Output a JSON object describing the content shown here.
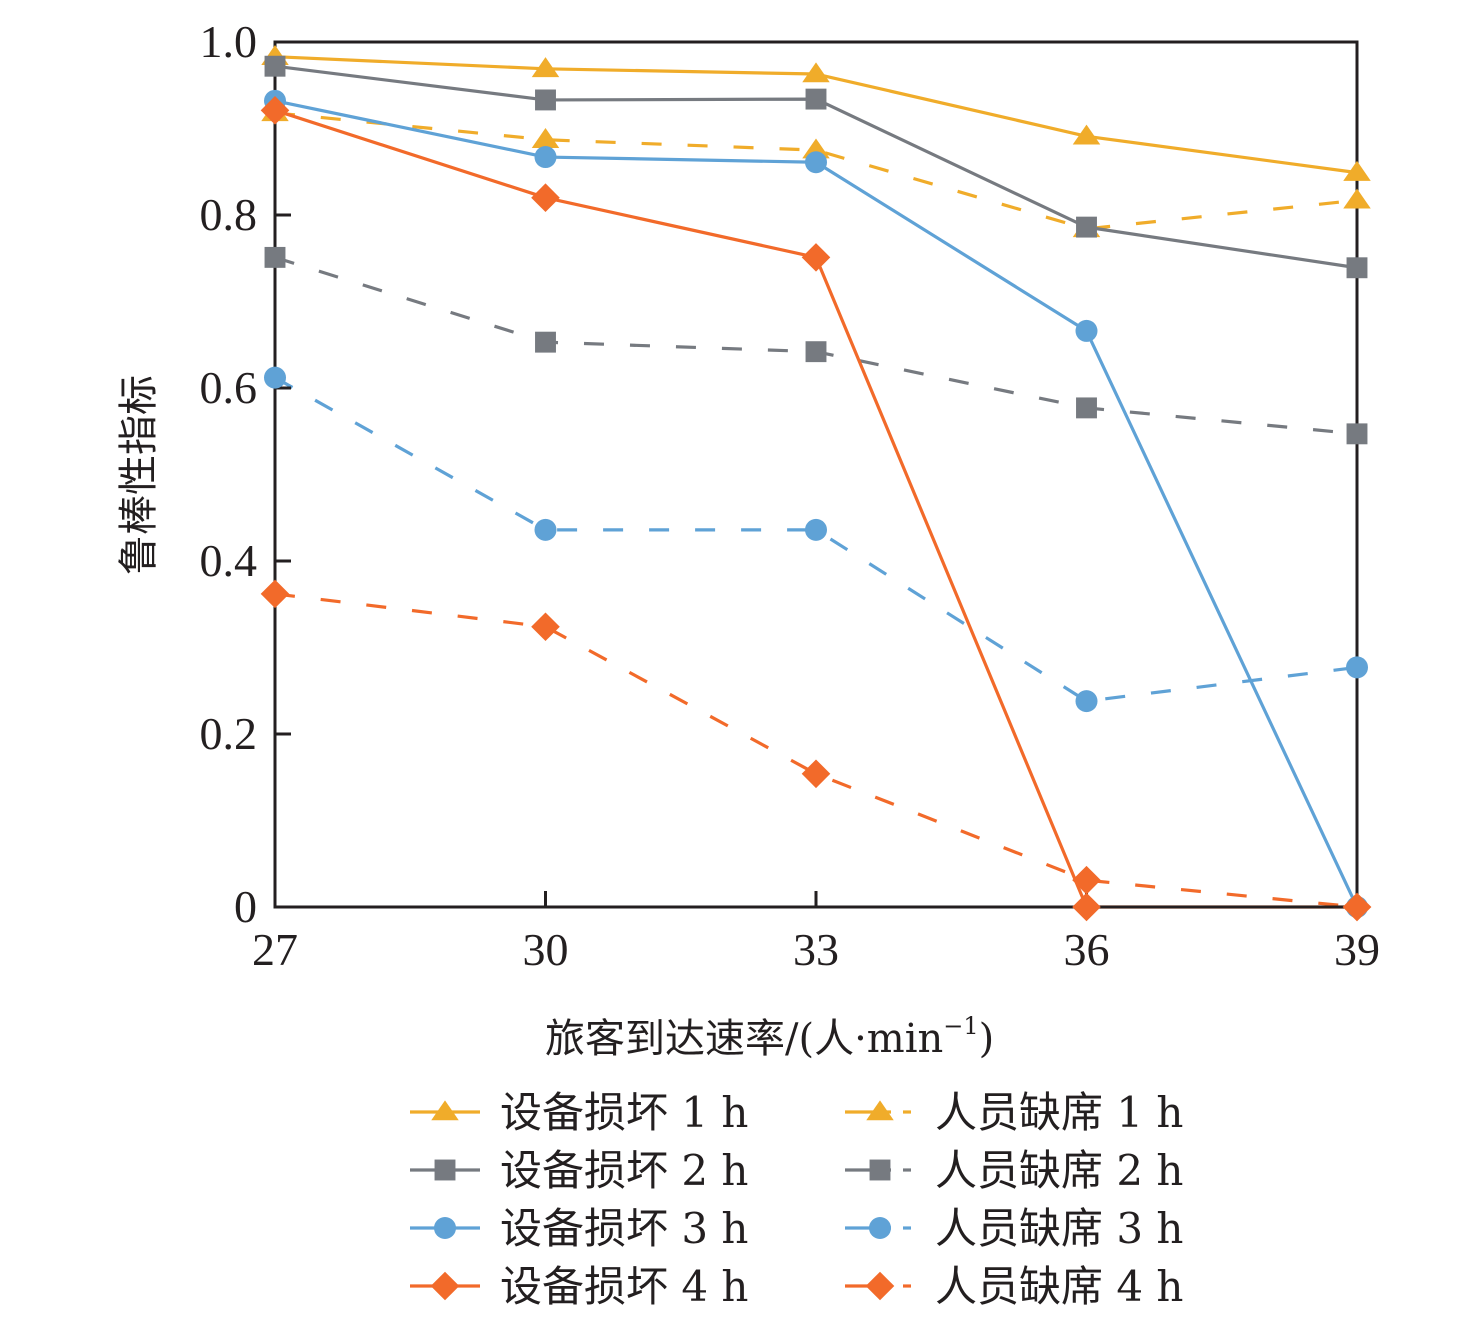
{
  "chart_data": {
    "type": "line",
    "title": "",
    "xlabel": "旅客到达速率/(人·min",
    "xlabel_sup": "−1",
    "xlabel_close": ")",
    "ylabel": "鲁棒性指标",
    "x": [
      27,
      30,
      33,
      36,
      39
    ],
    "xlim": [
      27,
      39
    ],
    "ylim": [
      0,
      1.0
    ],
    "x_ticks": [
      "27",
      "30",
      "33",
      "36",
      "39"
    ],
    "y_ticks": [
      {
        "value": 0,
        "label": "0"
      },
      {
        "value": 0.2,
        "label": "0.2"
      },
      {
        "value": 0.4,
        "label": "0.4"
      },
      {
        "value": 0.6,
        "label": "0.6"
      },
      {
        "value": 0.8,
        "label": "0.8"
      },
      {
        "value": 1.0,
        "label": "1.0"
      }
    ],
    "grid": false,
    "legend_position": "bottom",
    "series": [
      {
        "name": "设备损坏 1 h",
        "color": "#f0ac2a",
        "marker": "triangle",
        "dash": false,
        "values": [
          0.983,
          0.969,
          0.963,
          0.891,
          0.849
        ]
      },
      {
        "name": "设备损坏 2 h",
        "color": "#767a80",
        "marker": "square",
        "dash": false,
        "values": [
          0.972,
          0.933,
          0.934,
          0.786,
          0.739
        ]
      },
      {
        "name": "设备损坏 3 h",
        "color": "#5fa2d6",
        "marker": "circle",
        "dash": false,
        "values": [
          0.932,
          0.867,
          0.861,
          0.666,
          0.0
        ]
      },
      {
        "name": "设备损坏 4 h",
        "color": "#f26a2a",
        "marker": "diamond",
        "dash": false,
        "values": [
          0.921,
          0.82,
          0.751,
          0.0,
          0.0
        ]
      },
      {
        "name": "人员缺席 1 h",
        "color": "#f0ac2a",
        "marker": "triangle",
        "dash": true,
        "values": [
          0.918,
          0.887,
          0.875,
          0.784,
          0.817
        ]
      },
      {
        "name": "人员缺席 2 h",
        "color": "#767a80",
        "marker": "square",
        "dash": true,
        "values": [
          0.751,
          0.653,
          0.642,
          0.577,
          0.547
        ]
      },
      {
        "name": "人员缺席 3 h",
        "color": "#5fa2d6",
        "marker": "circle",
        "dash": true,
        "values": [
          0.612,
          0.436,
          0.436,
          0.238,
          0.277
        ]
      },
      {
        "name": "人员缺席 4 h",
        "color": "#f26a2a",
        "marker": "diamond",
        "dash": true,
        "values": [
          0.362,
          0.324,
          0.154,
          0.031,
          0.0
        ]
      }
    ]
  }
}
